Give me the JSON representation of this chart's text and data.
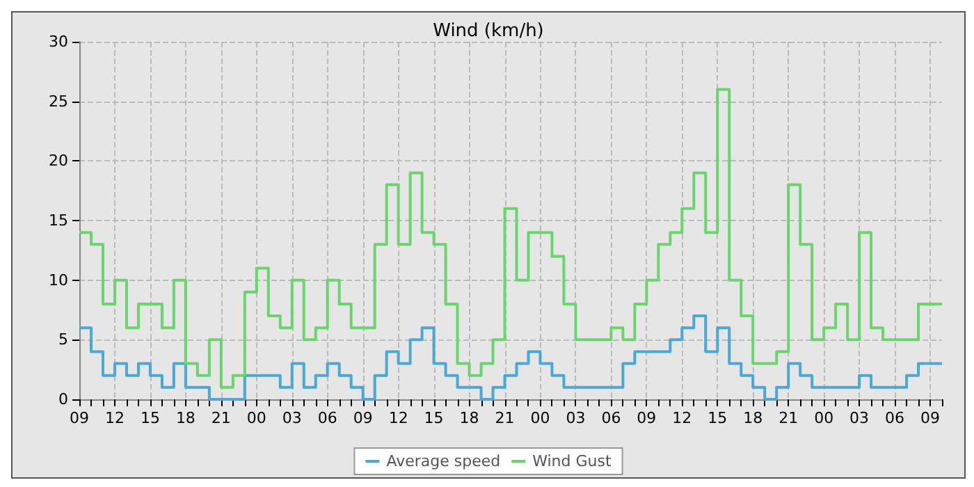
{
  "chart_data": {
    "type": "step",
    "title": "Wind (km/h)",
    "categories": [
      "09",
      null,
      null,
      "12",
      null,
      null,
      "15",
      null,
      null,
      "18",
      null,
      null,
      "21",
      null,
      null,
      "00",
      null,
      null,
      "03",
      null,
      null,
      "06",
      null,
      null,
      "09",
      null,
      null,
      "12",
      null,
      null,
      "15",
      null,
      null,
      "18",
      null,
      null,
      "21",
      null,
      null,
      "00",
      null,
      null,
      "03",
      null,
      null,
      "06",
      null,
      null,
      "09",
      null,
      null,
      "12",
      null,
      null,
      "15",
      null,
      null,
      "18",
      null,
      null,
      "21",
      null,
      null,
      "00",
      null,
      null,
      "03",
      null,
      null,
      "06",
      null,
      null,
      "09",
      null
    ],
    "series": [
      {
        "name": "Average speed",
        "color": "#4aa8d8",
        "values": [
          6,
          4,
          2,
          3,
          2,
          3,
          2,
          1,
          3,
          1,
          1,
          0,
          0,
          0,
          2,
          2,
          2,
          1,
          3,
          1,
          2,
          3,
          2,
          1,
          0,
          2,
          4,
          3,
          5,
          6,
          3,
          2,
          1,
          1,
          0,
          1,
          2,
          3,
          4,
          3,
          2,
          1,
          1,
          1,
          1,
          1,
          3,
          4,
          4,
          4,
          5,
          6,
          7,
          4,
          6,
          3,
          2,
          1,
          0,
          1,
          3,
          2,
          1,
          1,
          1,
          1,
          2,
          1,
          1,
          1,
          2,
          3,
          3,
          3
        ]
      },
      {
        "name": "Wind Gust",
        "color": "#6cd46c",
        "values": [
          14,
          13,
          8,
          10,
          6,
          8,
          8,
          6,
          10,
          3,
          2,
          5,
          1,
          2,
          9,
          11,
          7,
          6,
          10,
          5,
          6,
          10,
          8,
          6,
          6,
          13,
          18,
          13,
          19,
          14,
          13,
          8,
          3,
          2,
          3,
          5,
          16,
          10,
          14,
          14,
          12,
          8,
          5,
          5,
          5,
          6,
          5,
          8,
          10,
          13,
          14,
          16,
          19,
          14,
          26,
          10,
          7,
          3,
          3,
          4,
          18,
          13,
          5,
          6,
          8,
          5,
          14,
          6,
          5,
          5,
          5,
          8,
          8,
          8
        ]
      }
    ],
    "ylim": [
      0,
      30
    ],
    "yticks": [
      0,
      5,
      10,
      15,
      20,
      25,
      30
    ],
    "grid": true,
    "legend": "bottom",
    "marker": "none",
    "line_style": "solid"
  }
}
